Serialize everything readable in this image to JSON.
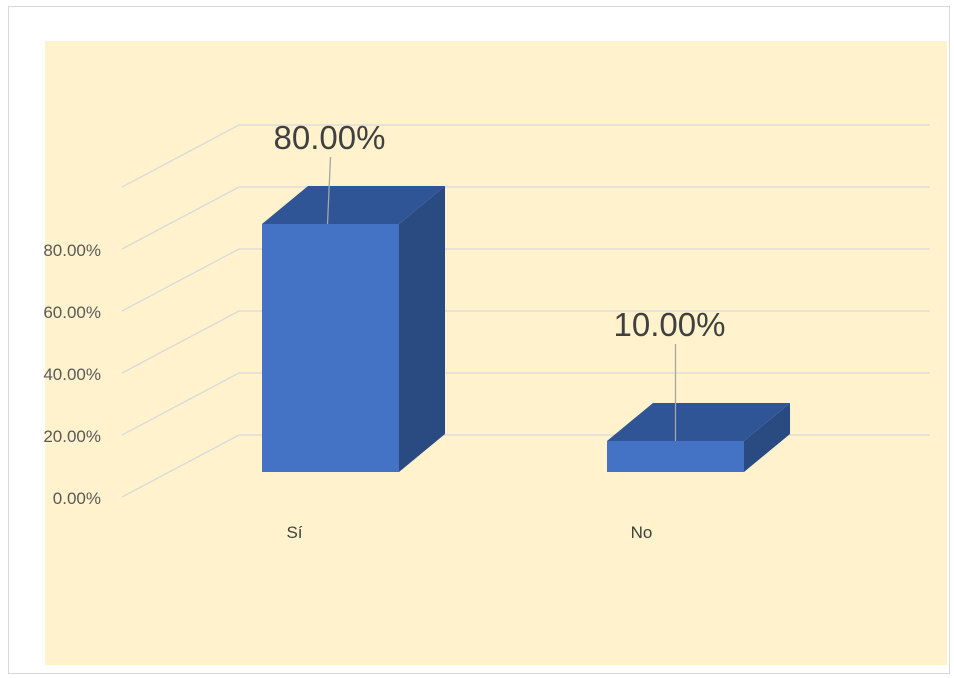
{
  "chart_data": {
    "type": "bar",
    "style": "3d-column",
    "categories": [
      "Sí",
      "No"
    ],
    "values": [
      80.0,
      10.0
    ],
    "data_labels": [
      "80.00%",
      "10.00%"
    ],
    "y_ticks": [
      "0.00%",
      "20.00%",
      "40.00%",
      "60.00%",
      "80.00%"
    ],
    "ylim": [
      0,
      100
    ],
    "title": "",
    "xlabel": "",
    "ylabel": "",
    "grid": true,
    "legend": "none",
    "colors": {
      "plot_background": "#fff2cc",
      "bar_front": "#4472c4",
      "bar_top": "#2f5597",
      "bar_side": "#2a4a82",
      "gridline": "#d9d9d9"
    }
  }
}
